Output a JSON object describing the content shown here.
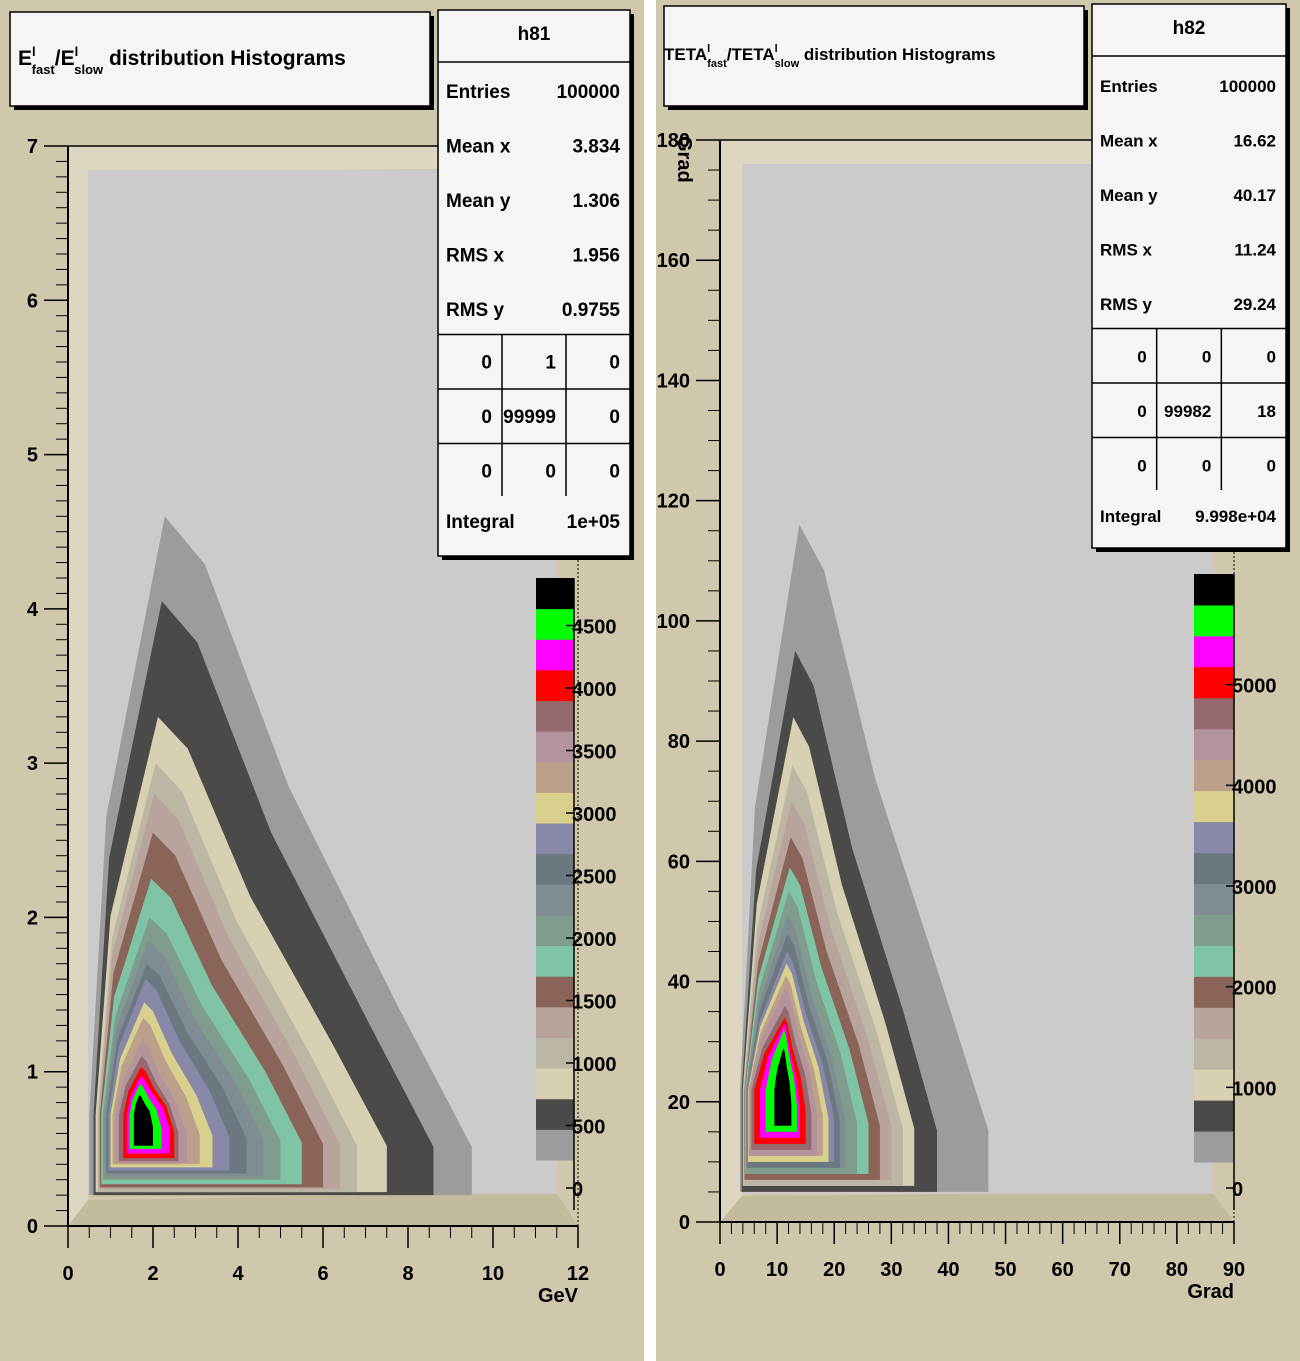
{
  "colors": {
    "pad": "#d0c8ac",
    "plot_area": "#cbcbcb",
    "box_bg": "#f5f5f5",
    "palette": [
      "#9c9c9c",
      "#4a4a4a",
      "#d8d0b2",
      "#bcb6a4",
      "#b8a49c",
      "#8a6458",
      "#80c4a8",
      "#809c8c",
      "#808c94",
      "#6c7880",
      "#8888a8",
      "#d8d08c",
      "#bca08c",
      "#b4949c",
      "#94686c",
      "#ff0000",
      "#ff00ff",
      "#00ff00",
      "#000000"
    ]
  },
  "chart_data": [
    {
      "type": "contour",
      "id": "h81",
      "title_parts": {
        "a": "E",
        "a_sup": "l",
        "a_sub": "fast",
        "sep": "/E",
        "b_sup": "l",
        "b_sub": "slow",
        "rest": " distribution Histograms"
      },
      "xlabel": "GeV",
      "ylabel": "",
      "xlim": [
        0,
        12
      ],
      "ylim": [
        0,
        7
      ],
      "x_ticks": [
        "0",
        "2",
        "4",
        "6",
        "8",
        "10",
        "12"
      ],
      "y_ticks": [
        "0",
        "1",
        "2",
        "3",
        "4",
        "5",
        "6",
        "7"
      ],
      "palette_labels": [
        "0",
        "500",
        "1000",
        "1500",
        "2000",
        "2500",
        "3000",
        "3500",
        "4000",
        "4500"
      ],
      "palette_max": 4800,
      "stats": {
        "name": "h81",
        "rows": [
          [
            "Entries",
            "100000"
          ],
          [
            "Mean x",
            "3.834"
          ],
          [
            "Mean y",
            "1.306"
          ],
          [
            "RMS x",
            "1.956"
          ],
          [
            "RMS y",
            "0.9755"
          ]
        ],
        "grid": [
          [
            "0",
            "1",
            "0"
          ],
          [
            "0",
            "99999",
            "0"
          ],
          [
            "0",
            "0",
            "0"
          ]
        ],
        "integral": [
          "Integral",
          "1e+05"
        ]
      },
      "peak": [
        1.65,
        0.72
      ],
      "contour_extents": [
        {
          "level": 1,
          "l": 0.5,
          "r": 9.5,
          "b": 0.2,
          "t": 4.6
        },
        {
          "level": 2,
          "l": 0.6,
          "r": 8.6,
          "b": 0.2,
          "t": 4.05
        },
        {
          "level": 3,
          "l": 0.65,
          "r": 7.5,
          "b": 0.22,
          "t": 3.3
        },
        {
          "level": 4,
          "l": 0.7,
          "r": 6.8,
          "b": 0.22,
          "t": 3.0
        },
        {
          "level": 5,
          "l": 0.72,
          "r": 6.4,
          "b": 0.24,
          "t": 2.8
        },
        {
          "level": 6,
          "l": 0.75,
          "r": 6.0,
          "b": 0.25,
          "t": 2.55
        },
        {
          "level": 7,
          "l": 0.78,
          "r": 5.5,
          "b": 0.27,
          "t": 2.25
        },
        {
          "level": 8,
          "l": 0.82,
          "r": 5.0,
          "b": 0.3,
          "t": 2.0
        },
        {
          "level": 9,
          "l": 0.86,
          "r": 4.6,
          "b": 0.32,
          "t": 1.85
        },
        {
          "level": 10,
          "l": 0.9,
          "r": 4.2,
          "b": 0.34,
          "t": 1.7
        },
        {
          "level": 11,
          "l": 0.95,
          "r": 3.8,
          "b": 0.36,
          "t": 1.6
        },
        {
          "level": 12,
          "l": 1.0,
          "r": 3.4,
          "b": 0.38,
          "t": 1.45
        },
        {
          "level": 13,
          "l": 1.05,
          "r": 3.1,
          "b": 0.4,
          "t": 1.35
        },
        {
          "level": 14,
          "l": 1.12,
          "r": 2.8,
          "b": 0.41,
          "t": 1.2
        },
        {
          "level": 15,
          "l": 1.2,
          "r": 2.6,
          "b": 0.42,
          "t": 1.1
        },
        {
          "level": 16,
          "l": 1.3,
          "r": 2.5,
          "b": 0.44,
          "t": 1.03
        },
        {
          "level": 17,
          "l": 1.38,
          "r": 2.4,
          "b": 0.47,
          "t": 0.97
        },
        {
          "level": 18,
          "l": 1.45,
          "r": 2.2,
          "b": 0.5,
          "t": 0.92
        },
        {
          "level": 19,
          "l": 1.55,
          "r": 2.0,
          "b": 0.52,
          "t": 0.85
        }
      ]
    },
    {
      "type": "contour",
      "id": "h82",
      "title_parts": {
        "a": "TETA",
        "a_sup": "l",
        "a_sub": "fast",
        "sep": "/TETA",
        "b_sup": "l",
        "b_sub": "slow",
        "rest": " distribution Histograms"
      },
      "xlabel": "Grad",
      "ylabel": "Grad",
      "xlim": [
        0,
        90
      ],
      "ylim": [
        0,
        180
      ],
      "x_ticks": [
        "0",
        "10",
        "20",
        "30",
        "40",
        "50",
        "60",
        "70",
        "80",
        "90"
      ],
      "y_ticks": [
        "0",
        "20",
        "40",
        "60",
        "80",
        "100",
        "120",
        "140",
        "160",
        "180"
      ],
      "palette_labels": [
        "0",
        "1000",
        "2000",
        "3000",
        "4000",
        "5000"
      ],
      "palette_max": 6000,
      "stats": {
        "name": "h82",
        "rows": [
          [
            "Entries",
            "100000"
          ],
          [
            "Mean x",
            "16.62"
          ],
          [
            "Mean y",
            "40.17"
          ],
          [
            "RMS x",
            "11.24"
          ],
          [
            "RMS y",
            "29.24"
          ]
        ],
        "grid": [
          [
            "0",
            "0",
            "0"
          ],
          [
            "0",
            "99982",
            "18"
          ],
          [
            "0",
            "0",
            "0"
          ]
        ],
        "integral": [
          "Integral",
          "9.998e+04"
        ]
      },
      "peak": [
        11,
        22
      ],
      "contour_extents": [
        {
          "level": 1,
          "l": 3.5,
          "r": 47,
          "b": 5,
          "t": 116
        },
        {
          "level": 2,
          "l": 3.8,
          "r": 38,
          "b": 5,
          "t": 95
        },
        {
          "level": 3,
          "l": 4.0,
          "r": 34,
          "b": 6,
          "t": 84
        },
        {
          "level": 4,
          "l": 4.1,
          "r": 32,
          "b": 6,
          "t": 76
        },
        {
          "level": 5,
          "l": 4.2,
          "r": 30,
          "b": 7,
          "t": 70
        },
        {
          "level": 6,
          "l": 4.3,
          "r": 28,
          "b": 7,
          "t": 64
        },
        {
          "level": 7,
          "l": 4.4,
          "r": 26,
          "b": 8,
          "t": 59
        },
        {
          "level": 8,
          "l": 4.5,
          "r": 24,
          "b": 8,
          "t": 55
        },
        {
          "level": 9,
          "l": 4.6,
          "r": 22,
          "b": 9,
          "t": 51
        },
        {
          "level": 10,
          "l": 4.7,
          "r": 21,
          "b": 9,
          "t": 48
        },
        {
          "level": 11,
          "l": 4.8,
          "r": 20,
          "b": 10,
          "t": 45
        },
        {
          "level": 12,
          "l": 4.9,
          "r": 19,
          "b": 10,
          "t": 43
        },
        {
          "level": 13,
          "l": 5.0,
          "r": 18,
          "b": 11,
          "t": 41
        },
        {
          "level": 14,
          "l": 5.2,
          "r": 17,
          "b": 11,
          "t": 39
        },
        {
          "level": 15,
          "l": 5.5,
          "r": 16,
          "b": 12,
          "t": 36
        },
        {
          "level": 16,
          "l": 6.0,
          "r": 15,
          "b": 13,
          "t": 34
        },
        {
          "level": 17,
          "l": 7.0,
          "r": 14,
          "b": 14,
          "t": 33
        },
        {
          "level": 18,
          "l": 8.0,
          "r": 13.5,
          "b": 15,
          "t": 32
        },
        {
          "level": 19,
          "l": 9.5,
          "r": 12.5,
          "b": 16,
          "t": 29
        }
      ]
    }
  ]
}
